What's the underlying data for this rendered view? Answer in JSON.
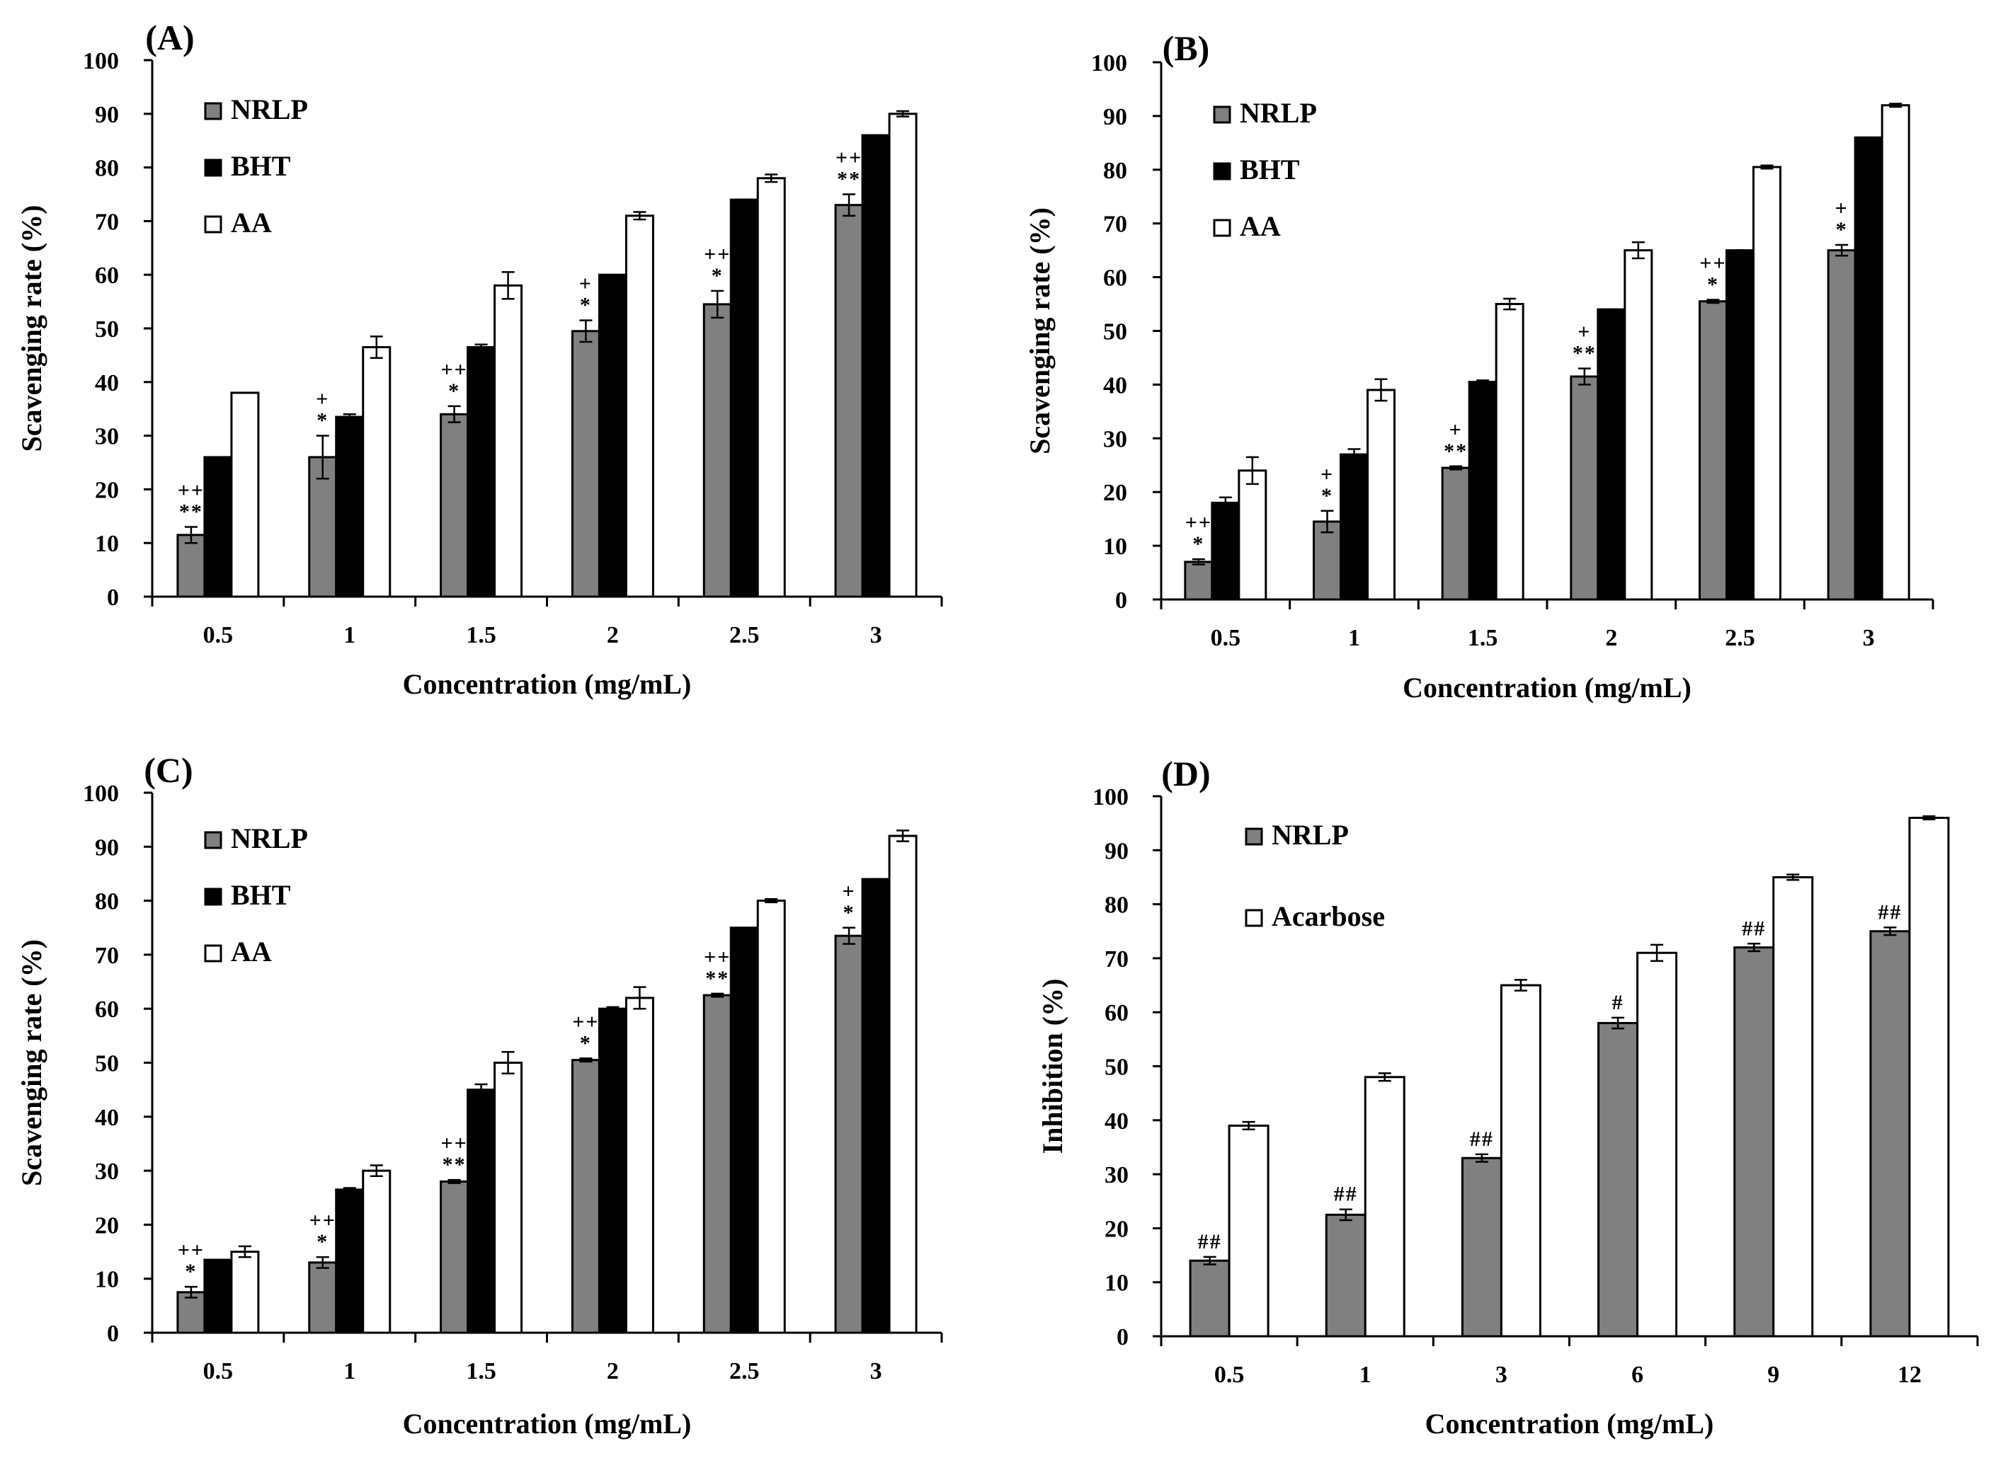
{
  "chart_data": [
    {
      "type": "bar",
      "title": "(A)",
      "xlabel": "Concentration (mg/mL)",
      "ylabel": "Scavenging rate (%)",
      "ylim": [
        0,
        100
      ],
      "yticks": [
        "0",
        "10",
        "20",
        "30",
        "40",
        "50",
        "60",
        "70",
        "80",
        "90",
        "100"
      ],
      "categories": [
        "0.5",
        "1",
        "1.5",
        "2",
        "2.5",
        "3"
      ],
      "grid": false,
      "legend_position": "top-left",
      "series": [
        {
          "name": "NRLP",
          "color": "#808080",
          "values": [
            11.5,
            26,
            34,
            49.5,
            54.5,
            73
          ],
          "errors": [
            1.5,
            4,
            1.5,
            2,
            2.5,
            2
          ],
          "annotations": [
            [
              "++",
              "**"
            ],
            [
              "+",
              "*"
            ],
            [
              "++",
              "*"
            ],
            [
              "+",
              "*"
            ],
            [
              "++",
              "*"
            ],
            [
              "++",
              "**"
            ]
          ]
        },
        {
          "name": "BHT",
          "color": "#000000",
          "values": [
            26,
            33.5,
            46.5,
            60,
            74,
            86
          ],
          "errors": [
            0,
            0.5,
            0.5,
            0,
            0,
            0
          ]
        },
        {
          "name": "AA",
          "color": "#ffffff",
          "values": [
            38,
            46.5,
            58,
            71,
            78,
            90
          ],
          "errors": [
            0,
            2,
            2.5,
            0.7,
            0.7,
            0.5
          ]
        }
      ]
    },
    {
      "type": "bar",
      "title": "(B)",
      "xlabel": "Concentration (mg/mL)",
      "ylabel": "Scavenging rate (%)",
      "ylim": [
        0,
        100
      ],
      "yticks": [
        "0",
        "10",
        "20",
        "30",
        "40",
        "50",
        "60",
        "70",
        "80",
        "90",
        "100"
      ],
      "categories": [
        "0.5",
        "1",
        "1.5",
        "2",
        "2.5",
        "3"
      ],
      "grid": false,
      "legend_position": "top-left",
      "series": [
        {
          "name": "NRLP",
          "color": "#808080",
          "values": [
            7,
            14.5,
            24.5,
            41.5,
            55.5,
            65
          ],
          "errors": [
            0.5,
            2,
            0.3,
            1.5,
            0.3,
            1
          ],
          "annotations": [
            [
              "++",
              "*"
            ],
            [
              "+",
              "*"
            ],
            [
              "+",
              "**"
            ],
            [
              "+",
              "**"
            ],
            [
              "++",
              "*"
            ],
            [
              "+",
              "*"
            ]
          ]
        },
        {
          "name": "BHT",
          "color": "#000000",
          "values": [
            18,
            27,
            40.5,
            54,
            65,
            86
          ],
          "errors": [
            1,
            1,
            0.3,
            0,
            0,
            0
          ]
        },
        {
          "name": "AA",
          "color": "#ffffff",
          "values": [
            24,
            39,
            55,
            65,
            80.5,
            92
          ],
          "errors": [
            2.5,
            2,
            1,
            1.5,
            0.3,
            0.3
          ]
        }
      ]
    },
    {
      "type": "bar",
      "title": "(C)",
      "xlabel": "Concentration (mg/mL)",
      "ylabel": "Scavenging rate (%)",
      "ylim": [
        0,
        100
      ],
      "yticks": [
        "0",
        "10",
        "20",
        "30",
        "40",
        "50",
        "60",
        "70",
        "80",
        "90",
        "100"
      ],
      "categories": [
        "0.5",
        "1",
        "1.5",
        "2",
        "2.5",
        "3"
      ],
      "grid": false,
      "legend_position": "top-left",
      "series": [
        {
          "name": "NRLP",
          "color": "#808080",
          "values": [
            7.5,
            13,
            28,
            50.5,
            62.5,
            73.5
          ],
          "errors": [
            1,
            1,
            0.3,
            0.3,
            0.3,
            1.5
          ],
          "annotations": [
            [
              "++",
              "*"
            ],
            [
              "++",
              "*"
            ],
            [
              "++",
              "**"
            ],
            [
              "++",
              "*"
            ],
            [
              "++",
              "**"
            ],
            [
              "+",
              "*"
            ]
          ]
        },
        {
          "name": "BHT",
          "color": "#000000",
          "values": [
            13.5,
            26.5,
            45,
            60,
            75,
            84
          ],
          "errors": [
            0,
            0.3,
            1,
            0.3,
            0,
            0
          ]
        },
        {
          "name": "AA",
          "color": "#ffffff",
          "values": [
            15,
            30,
            50,
            62,
            80,
            92
          ],
          "errors": [
            1,
            1,
            2,
            2,
            0.3,
            1
          ]
        }
      ]
    },
    {
      "type": "bar",
      "title": "(D)",
      "xlabel": "Concentration (mg/mL)",
      "ylabel": "Inhibition (%)",
      "ylim": [
        0,
        100
      ],
      "yticks": [
        "0",
        "10",
        "20",
        "30",
        "40",
        "50",
        "60",
        "70",
        "80",
        "90",
        "100"
      ],
      "categories": [
        "0.5",
        "1",
        "3",
        "6",
        "9",
        "12"
      ],
      "grid": false,
      "legend_position": "top-left",
      "series": [
        {
          "name": "NRLP",
          "color": "#808080",
          "values": [
            14,
            22.5,
            33,
            58,
            72,
            75
          ],
          "errors": [
            0.7,
            1,
            0.7,
            1,
            0.7,
            0.7
          ],
          "annotations": [
            [
              "##"
            ],
            [
              "##"
            ],
            [
              "##"
            ],
            [
              "#"
            ],
            [
              "##"
            ],
            [
              "##"
            ]
          ]
        },
        {
          "name": "Acarbose",
          "color": "#ffffff",
          "values": [
            39,
            48,
            65,
            71,
            85,
            96
          ],
          "errors": [
            0.7,
            0.7,
            1,
            1.5,
            0.5,
            0.3
          ]
        }
      ]
    }
  ]
}
